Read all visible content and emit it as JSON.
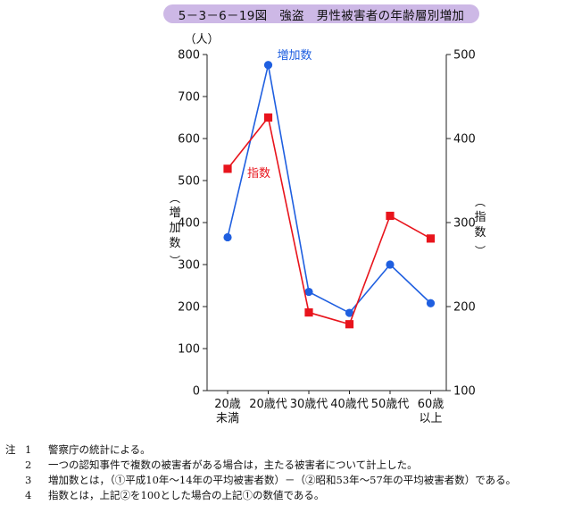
{
  "title": "5－3－6－19図　強盗　男性被害者の年齢層別増加",
  "chart_data": {
    "type": "line",
    "categories": [
      [
        "20歳",
        "未満"
      ],
      [
        "20歳代"
      ],
      [
        "30歳代"
      ],
      [
        "40歳代"
      ],
      [
        "50歳代"
      ],
      [
        "60歳",
        "以上"
      ]
    ],
    "left_axis": {
      "unit": "（人）",
      "label": [
        "増",
        "加",
        "数"
      ],
      "min": 0,
      "max": 800,
      "ticks": [
        "0",
        "100",
        "200",
        "300",
        "400",
        "500",
        "600",
        "700",
        "800"
      ]
    },
    "right_axis": {
      "label": [
        "指",
        "数"
      ],
      "min": 100,
      "max": 500,
      "ticks": [
        "100",
        "200",
        "300",
        "400",
        "500"
      ]
    },
    "series": [
      {
        "name": "増加数",
        "axis": "left",
        "color": "#1f5fe0",
        "marker": "circle",
        "values": [
          365,
          775,
          235,
          185,
          300,
          208
        ]
      },
      {
        "name": "指数",
        "axis": "right",
        "color": "#e8141c",
        "marker": "square",
        "values": [
          364,
          425,
          193,
          179,
          308,
          281
        ]
      }
    ]
  },
  "notes": {
    "lead": "注",
    "items": [
      {
        "num": "1",
        "text": "警察庁の統計による。"
      },
      {
        "num": "2",
        "text": "一つの認知事件で複数の被害者がある場合は，主たる被害者について計上した。"
      },
      {
        "num": "3",
        "text": "増加数とは，（①平成10年～14年の平均被害者数）－（②昭和53年～57年の平均被害者数）である。"
      },
      {
        "num": "4",
        "text": "指数とは，上記②を100とした場合の上記①の数値である。"
      }
    ]
  }
}
